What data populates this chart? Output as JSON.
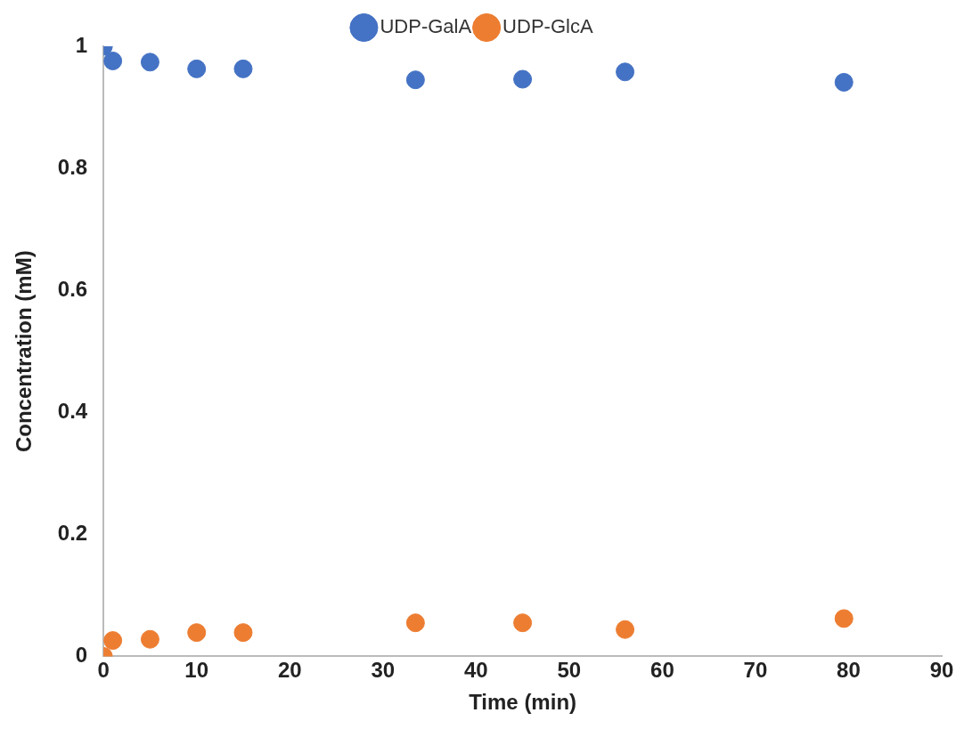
{
  "chart_data": {
    "type": "scatter",
    "xlabel": "Time (min)",
    "ylabel": "Concentration (mM)",
    "x": [
      0,
      1,
      5,
      10,
      15,
      33.5,
      45,
      56,
      79.5
    ],
    "series": [
      {
        "name": "UDP-GalA",
        "color": "#4472c4",
        "values": [
          1.0,
          0.976,
          0.974,
          0.963,
          0.963,
          0.945,
          0.946,
          0.958,
          0.941
        ]
      },
      {
        "name": "UDP-GlcA",
        "color": "#ed7d31",
        "values": [
          0,
          0.026,
          0.028,
          0.039,
          0.039,
          0.055,
          0.055,
          0.044,
          0.062
        ]
      }
    ],
    "xlim": [
      0,
      90
    ],
    "xticks": [
      0,
      10,
      20,
      30,
      40,
      50,
      60,
      70,
      80,
      90
    ],
    "ylim": [
      0,
      1
    ],
    "yticks": [
      0,
      0.2,
      0.4,
      0.6,
      0.8,
      1
    ],
    "grid": false,
    "legend": "top",
    "marker": "circle"
  }
}
